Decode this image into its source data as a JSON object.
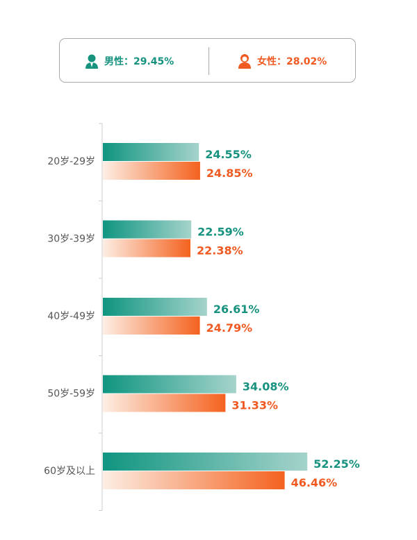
{
  "legend": {
    "male": {
      "label": "男性：29.45%",
      "icon": "male-user-icon",
      "color": "#16927f"
    },
    "female": {
      "label": "女性：28.02%",
      "icon": "female-user-icon",
      "color": "#f05a22"
    }
  },
  "chart_data": {
    "type": "bar",
    "orientation": "horizontal",
    "categories": [
      "20岁-29岁",
      "30岁-39岁",
      "40岁-49岁",
      "50岁-59岁",
      "60岁及以上"
    ],
    "series": [
      {
        "name": "男性",
        "color": "#16927f",
        "values": [
          24.55,
          22.59,
          26.61,
          34.08,
          52.25
        ],
        "labels": [
          "24.55%",
          "22.59%",
          "26.61%",
          "34.08%",
          "52.25%"
        ]
      },
      {
        "name": "女性",
        "color": "#f05a22",
        "values": [
          24.85,
          22.38,
          24.79,
          31.33,
          46.46
        ],
        "labels": [
          "24.85%",
          "22.38%",
          "24.79%",
          "31.33%",
          "46.46%"
        ]
      }
    ],
    "xlim": [
      0,
      60
    ]
  }
}
